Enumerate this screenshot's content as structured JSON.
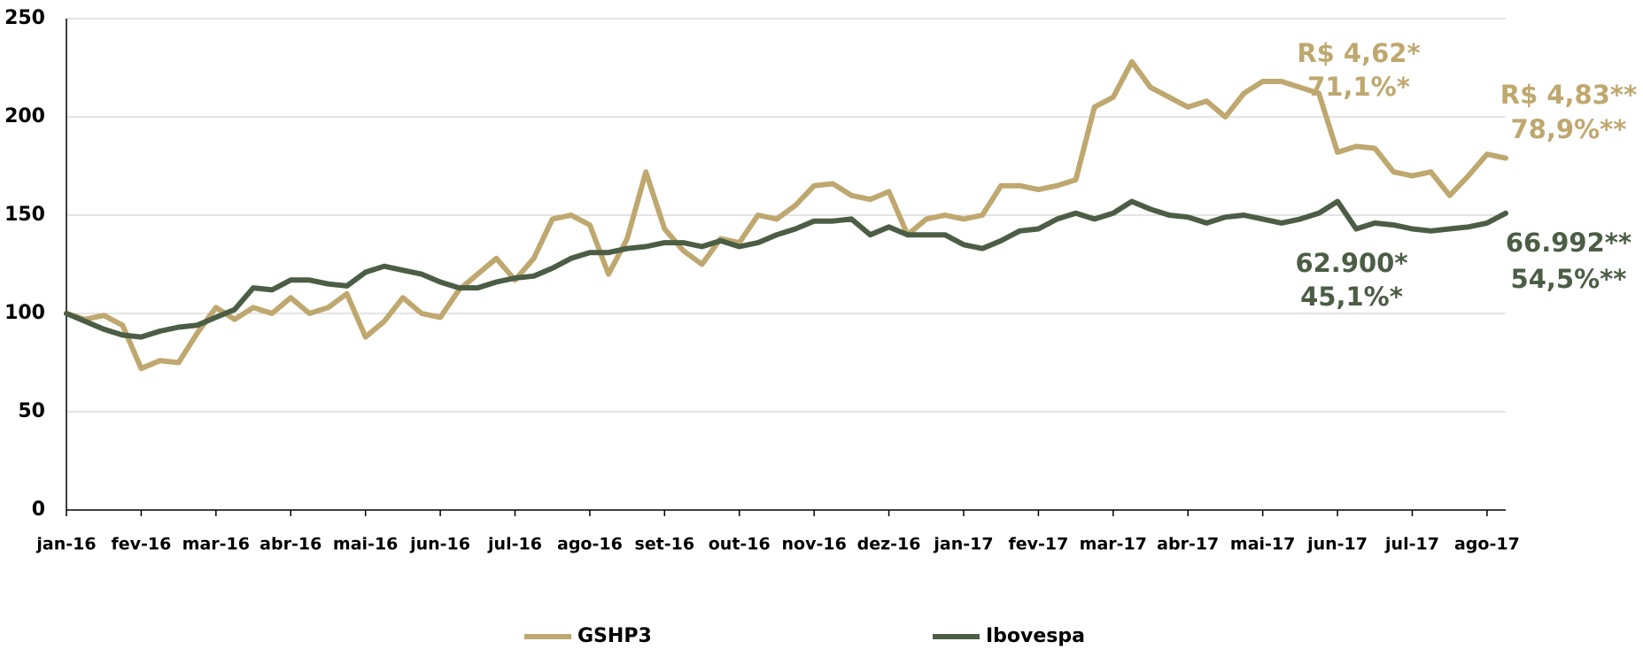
{
  "chart_data": {
    "type": "line",
    "categories": [
      "jan-16",
      null,
      null,
      null,
      "fev-16",
      null,
      null,
      null,
      "mar-16",
      null,
      null,
      null,
      "abr-16",
      null,
      null,
      null,
      "mai-16",
      null,
      null,
      null,
      "jun-16",
      null,
      null,
      null,
      "jul-16",
      null,
      null,
      null,
      "ago-16",
      null,
      null,
      null,
      "set-16",
      null,
      null,
      null,
      "out-16",
      null,
      null,
      null,
      "nov-16",
      null,
      null,
      null,
      "dez-16",
      null,
      null,
      null,
      "jan-17",
      null,
      null,
      null,
      "fev-17",
      null,
      null,
      null,
      "mar-17",
      null,
      null,
      null,
      "abr-17",
      null,
      null,
      null,
      "mai-17",
      null,
      null,
      null,
      "jun-17",
      null,
      null,
      null,
      "jul-17",
      null,
      null,
      null,
      "ago-17",
      null
    ],
    "series": [
      {
        "name": "GSHP3",
        "color": "#bfa86f",
        "values": [
          100,
          97,
          99,
          94,
          72,
          76,
          75,
          90,
          103,
          97,
          103,
          100,
          108,
          100,
          103,
          110,
          88,
          96,
          108,
          100,
          98,
          112,
          120,
          128,
          117,
          128,
          148,
          150,
          145,
          120,
          138,
          172,
          143,
          132,
          125,
          138,
          136,
          150,
          148,
          155,
          165,
          166,
          160,
          158,
          162,
          140,
          148,
          150,
          148,
          150,
          165,
          165,
          163,
          165,
          168,
          205,
          210,
          228,
          215,
          210,
          205,
          208,
          200,
          212,
          218,
          218,
          215,
          212,
          182,
          185,
          184,
          172,
          170,
          172,
          160,
          170,
          181,
          179
        ]
      },
      {
        "name": "Ibovespa",
        "color": "#4b5e45",
        "values": [
          100,
          96,
          92,
          89,
          88,
          91,
          93,
          94,
          98,
          102,
          113,
          112,
          117,
          117,
          115,
          114,
          121,
          124,
          122,
          120,
          116,
          113,
          113,
          116,
          118,
          119,
          123,
          128,
          131,
          131,
          133,
          134,
          136,
          136,
          134,
          137,
          134,
          136,
          140,
          143,
          147,
          147,
          148,
          140,
          144,
          140,
          140,
          140,
          135,
          133,
          137,
          142,
          143,
          148,
          151,
          148,
          151,
          157,
          153,
          150,
          149,
          146,
          149,
          150,
          148,
          146,
          148,
          151,
          157,
          143,
          146,
          145,
          143,
          142,
          143,
          144,
          146,
          151
        ]
      }
    ],
    "ylim": [
      0,
      250
    ],
    "yticks": [
      0,
      50,
      100,
      150,
      200,
      250
    ],
    "grid": true,
    "annotations": [
      {
        "text": "R$ 4,62*",
        "series": 0
      },
      {
        "text": "71,1%*",
        "series": 0
      },
      {
        "text": "R$ 4,83**",
        "series": 0
      },
      {
        "text": "78,9%**",
        "series": 0
      },
      {
        "text": "62.900*",
        "series": 1
      },
      {
        "text": "45,1%*",
        "series": 1
      },
      {
        "text": "66.992**",
        "series": 1
      },
      {
        "text": "54,5%**",
        "series": 1
      }
    ]
  }
}
